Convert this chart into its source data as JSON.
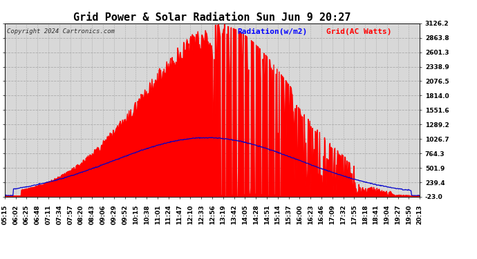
{
  "title": "Grid Power & Solar Radiation Sun Jun 9 20:27",
  "copyright": "Copyright 2024 Cartronics.com",
  "legend_radiation": "Radiation(w/m2)",
  "legend_grid": "Grid(AC Watts)",
  "yticks": [
    3126.2,
    2863.8,
    2601.3,
    2338.9,
    2076.5,
    1814.0,
    1551.6,
    1289.2,
    1026.7,
    764.3,
    501.9,
    239.4,
    -23.0
  ],
  "ymin": -23.0,
  "ymax": 3126.2,
  "background_color": "#ffffff",
  "plot_bg_color": "#d8d8d8",
  "radiation_color": "#ff0000",
  "grid_line_color": "#0000cc",
  "title_fontsize": 11,
  "copyright_fontsize": 6.5,
  "legend_fontsize": 8,
  "tick_fontsize": 6.5,
  "xtick_labels": [
    "05:15",
    "06:02",
    "06:25",
    "06:48",
    "07:11",
    "07:34",
    "07:57",
    "08:20",
    "08:43",
    "09:06",
    "09:29",
    "09:52",
    "10:15",
    "10:38",
    "11:01",
    "11:24",
    "11:47",
    "12:10",
    "12:33",
    "12:56",
    "13:19",
    "13:42",
    "14:05",
    "14:28",
    "14:51",
    "15:14",
    "15:37",
    "16:00",
    "16:23",
    "16:46",
    "17:09",
    "17:32",
    "17:55",
    "18:18",
    "18:41",
    "19:04",
    "19:27",
    "19:50",
    "20:13"
  ]
}
